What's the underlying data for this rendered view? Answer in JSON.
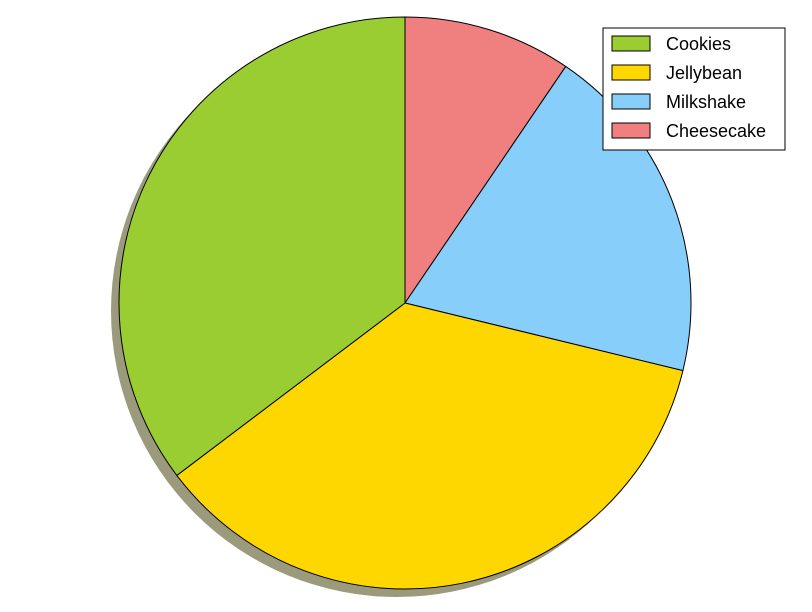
{
  "chart_data": {
    "type": "pie",
    "title": "",
    "shadow": true,
    "start_angle_deg": 90,
    "direction": "clockwise",
    "legend_position": "top-right",
    "slices": [
      {
        "label": "Cheesecake",
        "value": 9.5,
        "color": "#F08080"
      },
      {
        "label": "Milkshake",
        "value": 19.3,
        "color": "#87CEFA"
      },
      {
        "label": "Jellybean",
        "value": 35.9,
        "color": "#FFD700"
      },
      {
        "label": "Cookies",
        "value": 35.3,
        "color": "#9ACD32"
      }
    ],
    "legend_order": [
      "Cookies",
      "Jellybean",
      "Milkshake",
      "Cheesecake"
    ],
    "shadow_color": "#9B9A7D"
  }
}
